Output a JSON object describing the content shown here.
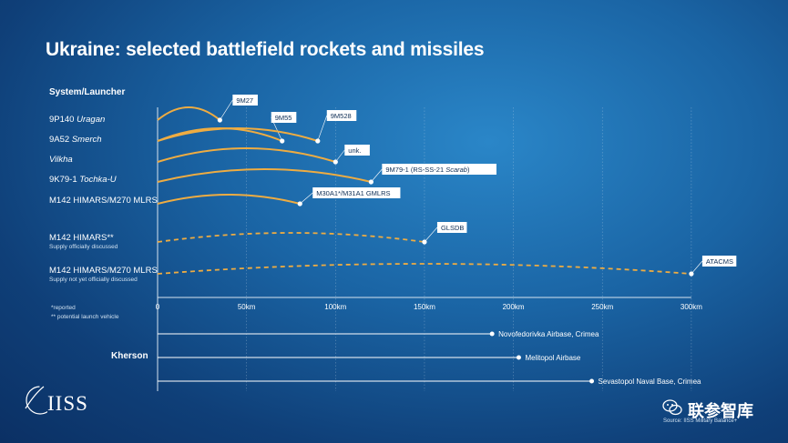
{
  "title": "Ukraine: selected battlefield rockets and missiles",
  "system_header": "System/Launcher",
  "footnotes": [
    "*reported",
    "** potential launch vehicle"
  ],
  "kherson_label": "Kherson",
  "source": "Source: IISS Military Balance+",
  "logo_text": "IISS",
  "watermark_text": "联参智库",
  "icons": [
    "iiss-logo-icon",
    "wechat-icon"
  ],
  "colors": {
    "range_line": "#eeac42",
    "axis": "#d6e3ef"
  },
  "systems": [
    {
      "label": "9P140 ",
      "label_em": "Uragan",
      "sub": ""
    },
    {
      "label": "9A52 ",
      "label_em": "Smerch",
      "sub": ""
    },
    {
      "label": "",
      "label_em": "Vilkha",
      "sub": ""
    },
    {
      "label": "9K79-1 ",
      "label_em": "Tochka-U",
      "sub": ""
    },
    {
      "label": "M142 HIMARS/M270 MLRS",
      "label_em": "",
      "sub": ""
    },
    {
      "label": "M142 HIMARS**",
      "label_em": "",
      "sub": "Supply officially discussed"
    },
    {
      "label": "M142 HIMARS/M270 MLRS",
      "label_em": "",
      "sub": "Supply not yet officially discussed"
    }
  ],
  "chart_data": {
    "type": "line",
    "x_unit": "km",
    "xlim": [
      0,
      300
    ],
    "x_ticks": [
      0,
      50,
      100,
      150,
      200,
      250,
      300
    ],
    "x_tick_labels": [
      "0",
      "50km",
      "100km",
      "150km",
      "200km",
      "250km",
      "300km"
    ],
    "series": [
      {
        "name": "9M27",
        "system": 0,
        "range_km": 35,
        "style": "solid"
      },
      {
        "name": "9M55",
        "system": 1,
        "range_km": 70,
        "style": "solid"
      },
      {
        "name": "9M528",
        "system": 1,
        "range_km": 90,
        "style": "solid"
      },
      {
        "name": "unk.",
        "system": 2,
        "range_km": 100,
        "style": "solid"
      },
      {
        "name": "9M79-1 (RS-SS-21 ",
        "name_em": "Scarab",
        "name_tail": ")",
        "system": 3,
        "range_km": 120,
        "style": "solid"
      },
      {
        "name": "M30A1*/M31A1 GMLRS",
        "system": 4,
        "range_km": 80,
        "style": "solid"
      },
      {
        "name": "GLSDB",
        "system": 5,
        "range_km": 150,
        "style": "dashed"
      },
      {
        "name": "ATACMS",
        "system": 6,
        "range_km": 300,
        "style": "dashed"
      }
    ],
    "targets": [
      {
        "name": "Novofedorivka Airbase, Crimea",
        "distance_km": 188
      },
      {
        "name": "Melitopol Airbase",
        "distance_km": 203
      },
      {
        "name": "Sevastopol Naval Base, Crimea",
        "distance_km": 244
      }
    ]
  }
}
